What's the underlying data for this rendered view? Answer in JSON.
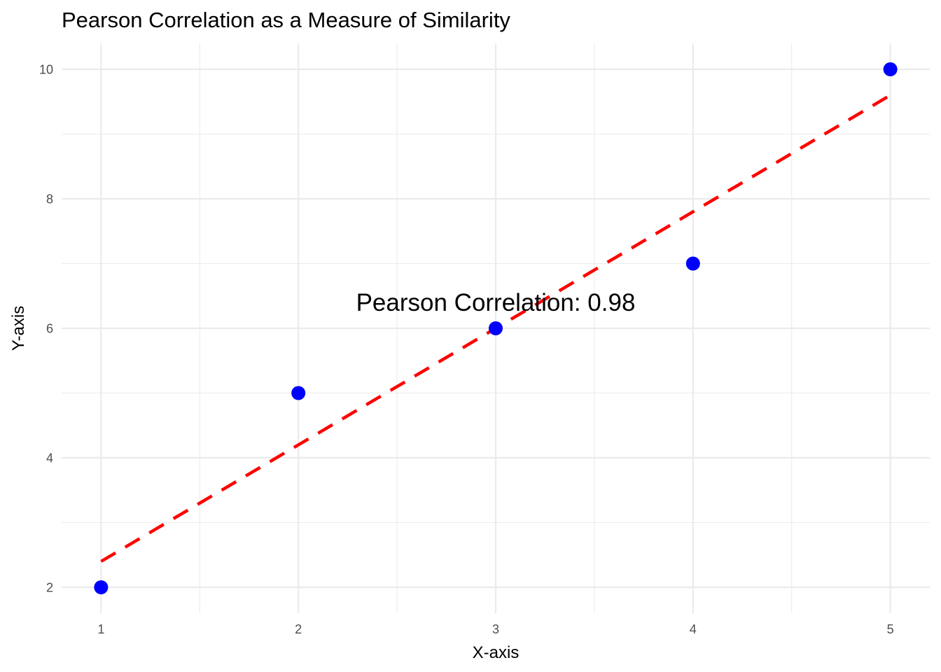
{
  "chart_data": {
    "type": "scatter",
    "title": "Pearson Correlation as a Measure of Similarity",
    "xlabel": "X-axis",
    "ylabel": "Y-axis",
    "x": [
      1,
      2,
      3,
      4,
      5
    ],
    "y": [
      2,
      5,
      6,
      7,
      10
    ],
    "series": [
      {
        "name": "points",
        "kind": "scatter",
        "color": "#0000ff",
        "x": [
          1,
          2,
          3,
          4,
          5
        ],
        "y": [
          2,
          5,
          6,
          7,
          10
        ]
      },
      {
        "name": "linear-fit",
        "kind": "line",
        "style": "dashed",
        "color": "#ff0000",
        "slope": 1.8,
        "intercept": 0.6,
        "x": [
          1,
          5
        ],
        "y": [
          2.4,
          9.6
        ]
      }
    ],
    "xlim": [
      0.8,
      5.2
    ],
    "ylim": [
      1.6,
      10.4
    ],
    "xticks": [
      1,
      2,
      3,
      4,
      5
    ],
    "xtick_labels": [
      "1",
      "2",
      "3",
      "4",
      "5"
    ],
    "xminor": [
      1.5,
      2.5,
      3.5,
      4.5
    ],
    "yticks": [
      2,
      4,
      6,
      8,
      10
    ],
    "ytick_labels": [
      "2",
      "4",
      "6",
      "8",
      "10"
    ],
    "yminor": [
      3,
      5,
      7,
      9
    ],
    "grid": true,
    "legend": "none",
    "annotations": [
      {
        "text": "Pearson Correlation: 0.98",
        "x": 3,
        "y": 6.4
      }
    ]
  }
}
